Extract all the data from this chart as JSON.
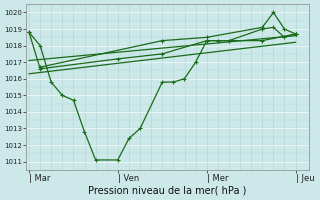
{
  "bg_color": "#cce8e8",
  "grid_color_h": "#ffffff",
  "grid_color_v": "#b0d8d8",
  "line_color": "#1a6b1a",
  "ylabel_text": "Pression niveau de la mer( hPa )",
  "ylim": [
    1010.5,
    1020.5
  ],
  "yticks": [
    1011,
    1012,
    1013,
    1014,
    1015,
    1016,
    1017,
    1018,
    1019,
    1020
  ],
  "xtick_labels": [
    "| Mar",
    "| Ven",
    "| Mer",
    "| Jeu"
  ],
  "xtick_positions": [
    0.0,
    0.333,
    0.667,
    1.0
  ],
  "series1_x": [
    0.0,
    0.042,
    0.083,
    0.125,
    0.167,
    0.208,
    0.25,
    0.333,
    0.375,
    0.417,
    0.5,
    0.542,
    0.583,
    0.625,
    0.667,
    0.708,
    0.75,
    0.875,
    0.917,
    0.958,
    1.0
  ],
  "series1_y": [
    1018.8,
    1018.0,
    1015.8,
    1015.0,
    1014.7,
    1012.8,
    1011.1,
    1011.1,
    1012.4,
    1013.0,
    1015.8,
    1015.8,
    1016.0,
    1017.0,
    1018.3,
    1018.3,
    1018.3,
    1019.0,
    1019.1,
    1018.5,
    1018.7
  ],
  "series2_x": [
    0.0,
    0.042,
    0.333,
    0.5,
    0.667,
    0.875,
    1.0
  ],
  "series2_y": [
    1018.8,
    1016.6,
    1017.2,
    1017.5,
    1018.3,
    1018.3,
    1018.7
  ],
  "series3_x": [
    0.0,
    1.0
  ],
  "series3_y": [
    1016.3,
    1018.2
  ],
  "series4_x": [
    0.0,
    1.0
  ],
  "series4_y": [
    1017.1,
    1018.6
  ],
  "series5_x": [
    0.042,
    0.5,
    0.667,
    0.875,
    0.917,
    0.958,
    1.0
  ],
  "series5_y": [
    1016.7,
    1018.3,
    1018.5,
    1019.1,
    1020.0,
    1019.0,
    1018.7
  ],
  "vlines_x": [
    0.0,
    0.333,
    0.667,
    1.0
  ]
}
